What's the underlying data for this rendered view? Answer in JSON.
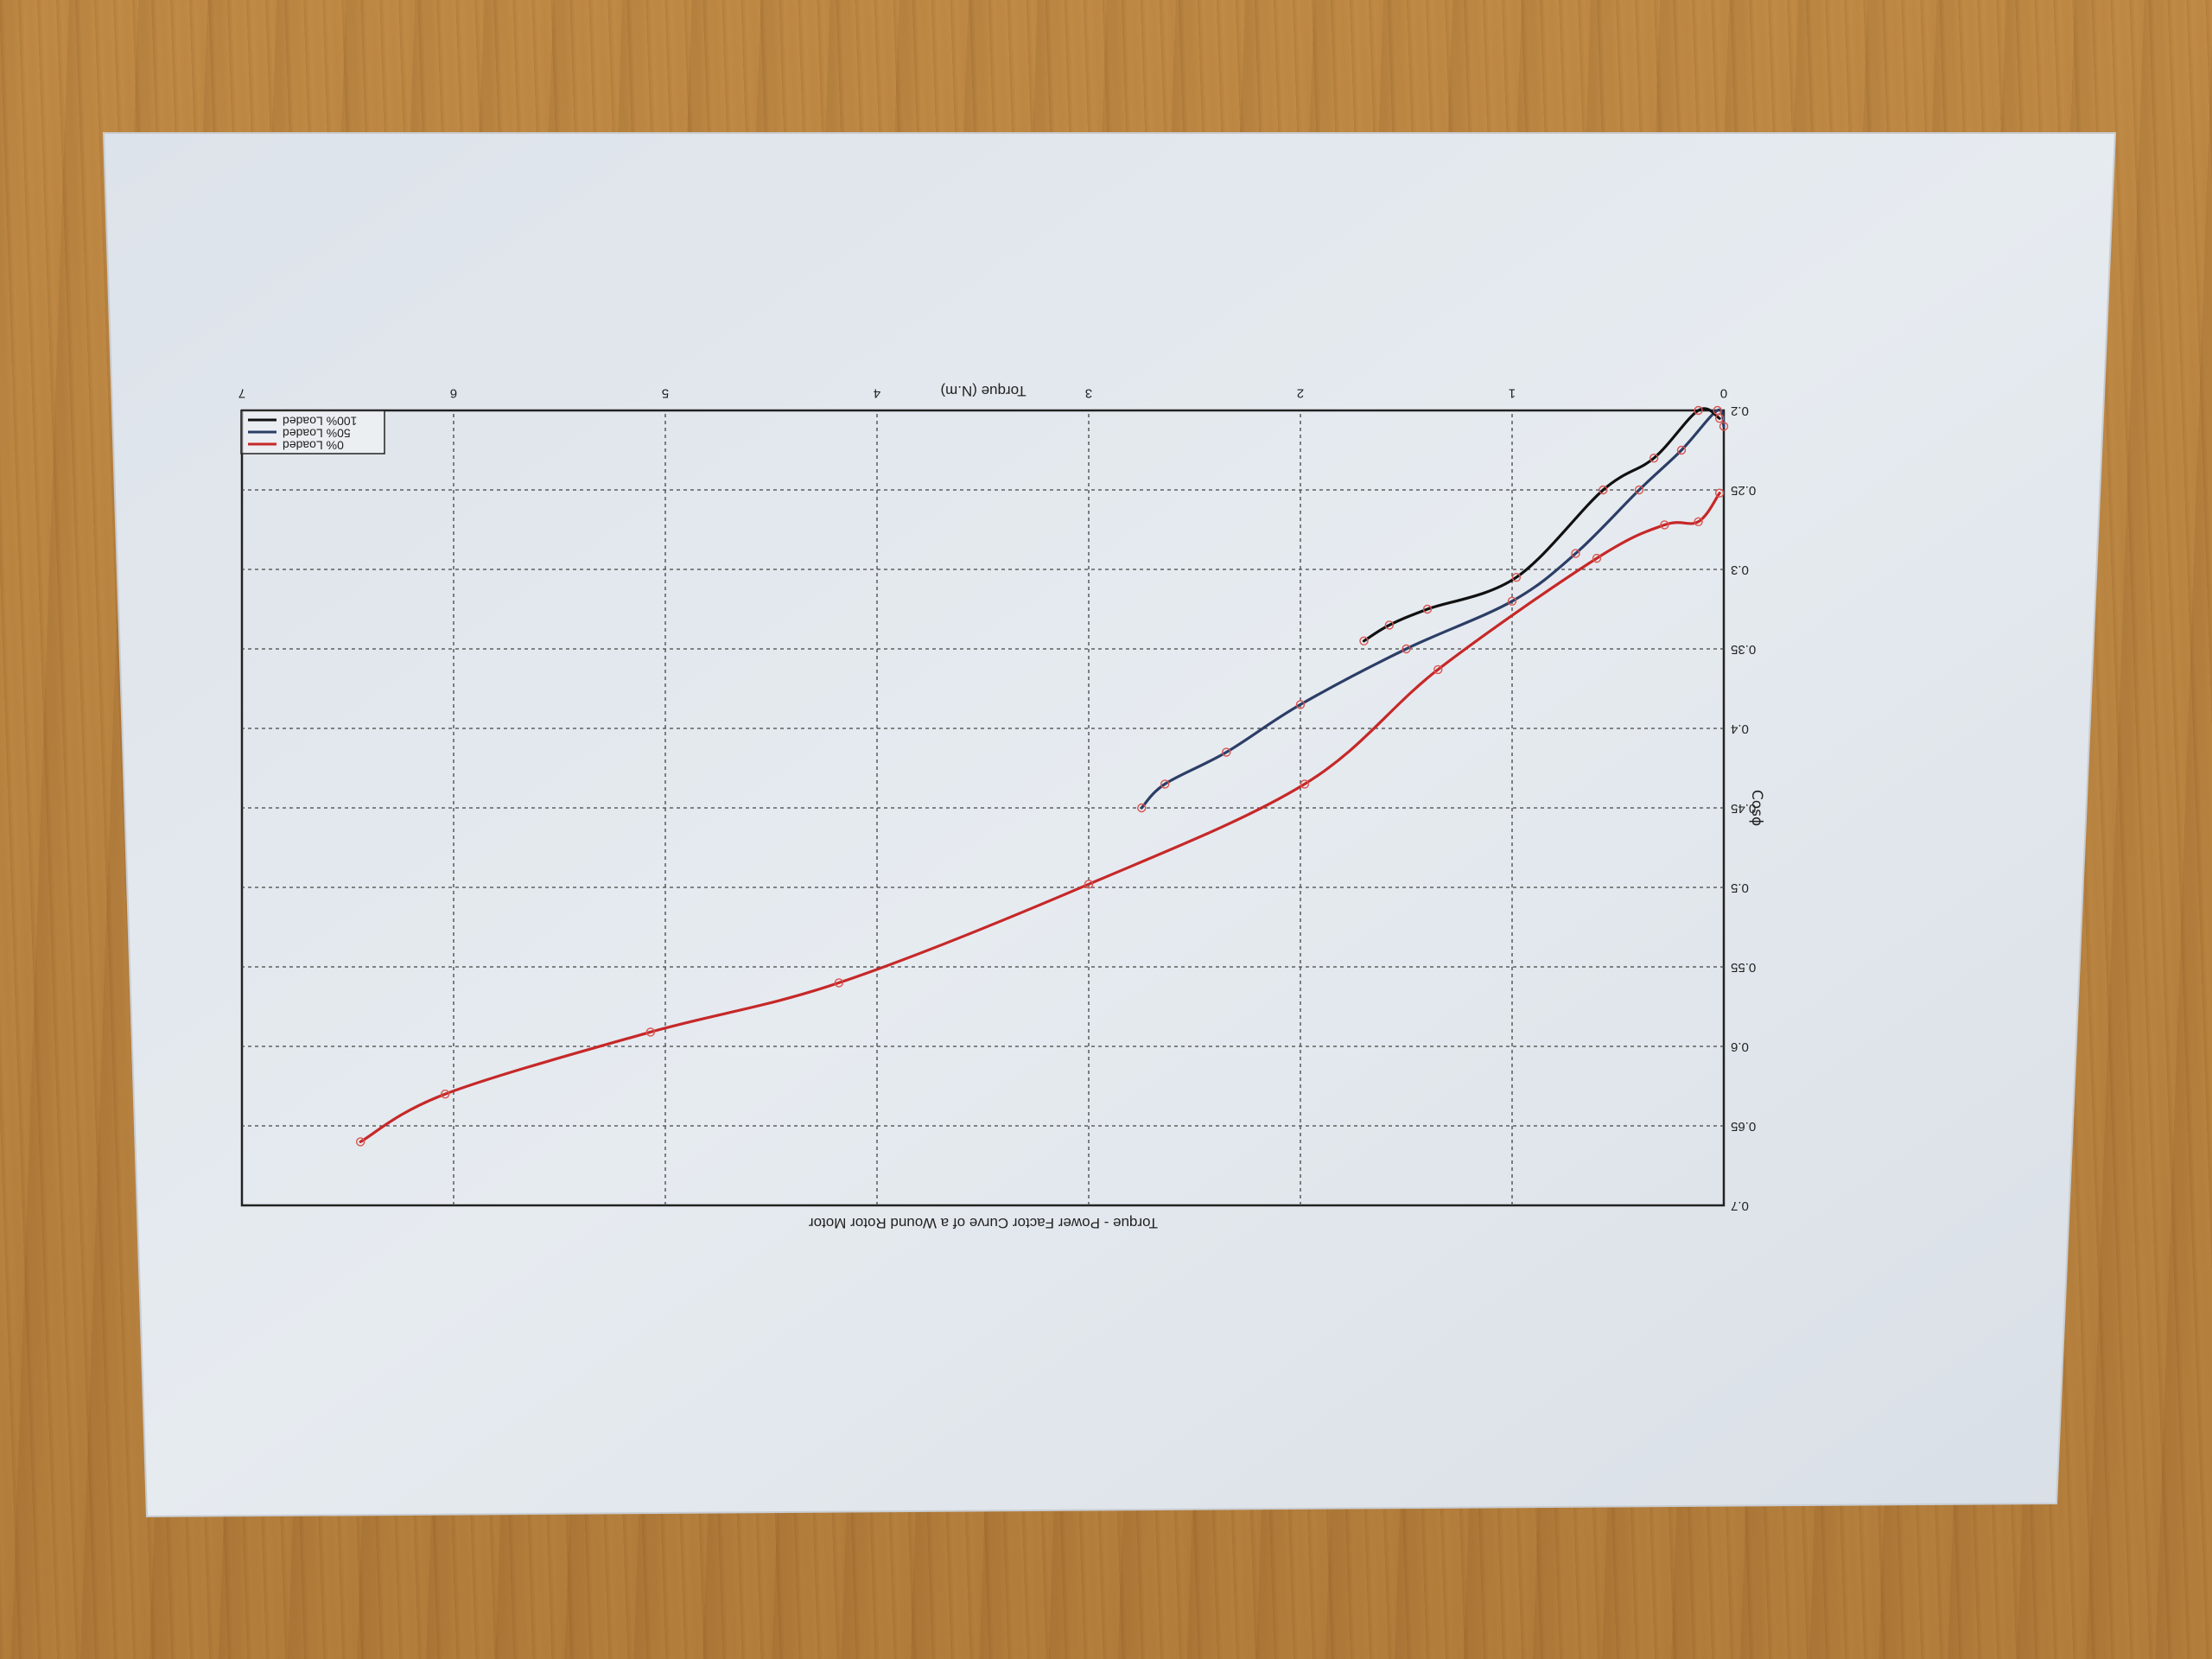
{
  "chart_data": {
    "type": "line",
    "title": "Torque - Power Factor Curve of a Wound Rotor Motor",
    "xlabel": "Torque (N.m)",
    "ylabel": "Cosϕ",
    "xlim": [
      0,
      7
    ],
    "ylim": [
      0.2,
      0.7
    ],
    "xticks": [
      "0",
      "1",
      "2",
      "3",
      "4",
      "5",
      "6",
      "7"
    ],
    "yticks": [
      "0.2",
      "0.25",
      "0.3",
      "0.35",
      "0.4",
      "0.45",
      "0.5",
      "0.55",
      "0.6",
      "0.65",
      "0.7"
    ],
    "grid": true,
    "legend_position": "top-right",
    "legend": [
      "0% Loaded",
      "50% Loaded",
      "100% Loaded"
    ],
    "series": [
      {
        "name": "0% Loaded",
        "color": "#c62828",
        "points": [
          [
            0.02,
            0.252
          ],
          [
            0.12,
            0.27
          ],
          [
            0.28,
            0.272
          ],
          [
            0.6,
            0.293
          ],
          [
            1.35,
            0.363
          ],
          [
            1.98,
            0.435
          ],
          [
            3.0,
            0.498
          ],
          [
            4.18,
            0.56
          ],
          [
            5.07,
            0.591
          ],
          [
            6.04,
            0.63
          ],
          [
            6.44,
            0.66
          ]
        ]
      },
      {
        "name": "50% Loaded",
        "color": "#2c3e66",
        "points": [
          [
            0.0,
            0.21
          ],
          [
            0.03,
            0.2
          ],
          [
            0.2,
            0.225
          ],
          [
            0.4,
            0.25
          ],
          [
            0.7,
            0.29
          ],
          [
            1.0,
            0.32
          ],
          [
            1.5,
            0.35
          ],
          [
            2.0,
            0.385
          ],
          [
            2.35,
            0.415
          ],
          [
            2.64,
            0.435
          ],
          [
            2.75,
            0.45
          ]
        ]
      },
      {
        "name": "100% Loaded",
        "color": "#111111",
        "points": [
          [
            0.02,
            0.205
          ],
          [
            0.12,
            0.2
          ],
          [
            0.33,
            0.23
          ],
          [
            0.57,
            0.25
          ],
          [
            0.98,
            0.305
          ],
          [
            1.4,
            0.325
          ],
          [
            1.58,
            0.335
          ],
          [
            1.7,
            0.345
          ]
        ]
      }
    ]
  }
}
